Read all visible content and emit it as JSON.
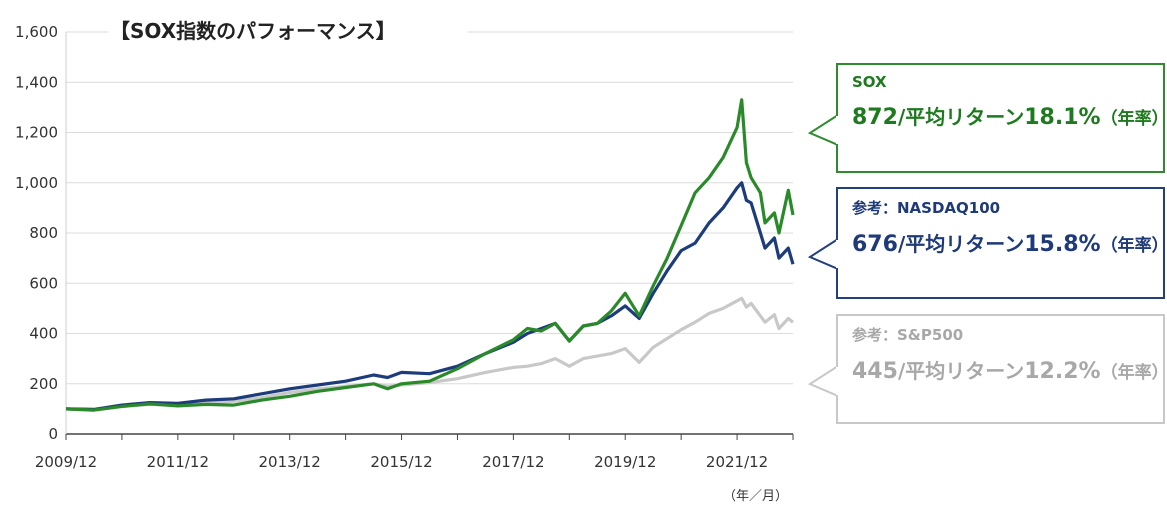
{
  "chart_data": {
    "type": "line",
    "title": "【SOX指数のパフォーマンス】",
    "x_unit_label": "（年／月）",
    "x_tick_labels": [
      "2009/12",
      "2011/12",
      "2013/12",
      "2015/12",
      "2017/12",
      "2019/12",
      "2021/12"
    ],
    "x_range": [
      "2009-12",
      "2022-12"
    ],
    "ylim": [
      0,
      1600
    ],
    "y_ticks": [
      0,
      200,
      400,
      600,
      800,
      1000,
      1200,
      1400,
      1600
    ],
    "y_tick_labels": [
      "0",
      "200",
      "400",
      "600",
      "800",
      "1,000",
      "1,200",
      "1,400",
      "1,600"
    ],
    "grid": "horizontal",
    "series": [
      {
        "name": "SOX",
        "color": "#2a8a2a",
        "points": [
          [
            "2009-12",
            100
          ],
          [
            "2010-06",
            95
          ],
          [
            "2010-12",
            110
          ],
          [
            "2011-06",
            120
          ],
          [
            "2011-12",
            112
          ],
          [
            "2012-06",
            118
          ],
          [
            "2012-12",
            115
          ],
          [
            "2013-06",
            135
          ],
          [
            "2013-12",
            150
          ],
          [
            "2014-06",
            170
          ],
          [
            "2014-12",
            185
          ],
          [
            "2015-06",
            200
          ],
          [
            "2015-09",
            180
          ],
          [
            "2015-12",
            200
          ],
          [
            "2016-06",
            210
          ],
          [
            "2016-12",
            260
          ],
          [
            "2017-06",
            320
          ],
          [
            "2017-12",
            375
          ],
          [
            "2018-03",
            420
          ],
          [
            "2018-06",
            410
          ],
          [
            "2018-09",
            440
          ],
          [
            "2018-12",
            370
          ],
          [
            "2019-03",
            430
          ],
          [
            "2019-06",
            440
          ],
          [
            "2019-09",
            490
          ],
          [
            "2019-12",
            560
          ],
          [
            "2020-03",
            470
          ],
          [
            "2020-06",
            590
          ],
          [
            "2020-09",
            700
          ],
          [
            "2020-12",
            830
          ],
          [
            "2021-03",
            960
          ],
          [
            "2021-06",
            1020
          ],
          [
            "2021-09",
            1100
          ],
          [
            "2021-12",
            1220
          ],
          [
            "2022-01",
            1330
          ],
          [
            "2022-02",
            1080
          ],
          [
            "2022-03",
            1020
          ],
          [
            "2022-05",
            960
          ],
          [
            "2022-06",
            840
          ],
          [
            "2022-08",
            880
          ],
          [
            "2022-09",
            800
          ],
          [
            "2022-11",
            970
          ],
          [
            "2022-12",
            872
          ]
        ]
      },
      {
        "name": "参考：NASDAQ100",
        "color": "#1d3c7c",
        "points": [
          [
            "2009-12",
            100
          ],
          [
            "2010-06",
            98
          ],
          [
            "2010-12",
            115
          ],
          [
            "2011-06",
            125
          ],
          [
            "2011-12",
            122
          ],
          [
            "2012-06",
            135
          ],
          [
            "2012-12",
            140
          ],
          [
            "2013-06",
            160
          ],
          [
            "2013-12",
            180
          ],
          [
            "2014-06",
            195
          ],
          [
            "2014-12",
            210
          ],
          [
            "2015-06",
            235
          ],
          [
            "2015-09",
            225
          ],
          [
            "2015-12",
            245
          ],
          [
            "2016-06",
            240
          ],
          [
            "2016-12",
            270
          ],
          [
            "2017-06",
            320
          ],
          [
            "2017-12",
            365
          ],
          [
            "2018-03",
            400
          ],
          [
            "2018-06",
            420
          ],
          [
            "2018-09",
            440
          ],
          [
            "2018-12",
            370
          ],
          [
            "2019-03",
            430
          ],
          [
            "2019-06",
            440
          ],
          [
            "2019-09",
            470
          ],
          [
            "2019-12",
            510
          ],
          [
            "2020-03",
            460
          ],
          [
            "2020-06",
            560
          ],
          [
            "2020-09",
            650
          ],
          [
            "2020-12",
            730
          ],
          [
            "2021-03",
            760
          ],
          [
            "2021-06",
            840
          ],
          [
            "2021-09",
            900
          ],
          [
            "2021-12",
            980
          ],
          [
            "2022-01",
            1000
          ],
          [
            "2022-02",
            930
          ],
          [
            "2022-03",
            920
          ],
          [
            "2022-05",
            800
          ],
          [
            "2022-06",
            740
          ],
          [
            "2022-08",
            780
          ],
          [
            "2022-09",
            700
          ],
          [
            "2022-11",
            740
          ],
          [
            "2022-12",
            676
          ]
        ]
      },
      {
        "name": "参考：S&P500",
        "color": "#c8c8c8",
        "points": [
          [
            "2009-12",
            100
          ],
          [
            "2010-06",
            95
          ],
          [
            "2010-12",
            110
          ],
          [
            "2011-06",
            118
          ],
          [
            "2011-12",
            115
          ],
          [
            "2012-06",
            125
          ],
          [
            "2012-12",
            130
          ],
          [
            "2013-06",
            145
          ],
          [
            "2013-12",
            165
          ],
          [
            "2014-06",
            180
          ],
          [
            "2014-12",
            190
          ],
          [
            "2015-06",
            200
          ],
          [
            "2015-09",
            190
          ],
          [
            "2015-12",
            195
          ],
          [
            "2016-06",
            205
          ],
          [
            "2016-12",
            220
          ],
          [
            "2017-06",
            245
          ],
          [
            "2017-12",
            265
          ],
          [
            "2018-03",
            270
          ],
          [
            "2018-06",
            280
          ],
          [
            "2018-09",
            300
          ],
          [
            "2018-12",
            270
          ],
          [
            "2019-03",
            300
          ],
          [
            "2019-06",
            310
          ],
          [
            "2019-09",
            320
          ],
          [
            "2019-12",
            340
          ],
          [
            "2020-03",
            285
          ],
          [
            "2020-06",
            345
          ],
          [
            "2020-09",
            380
          ],
          [
            "2020-12",
            415
          ],
          [
            "2021-03",
            445
          ],
          [
            "2021-06",
            480
          ],
          [
            "2021-09",
            500
          ],
          [
            "2021-12",
            530
          ],
          [
            "2022-01",
            540
          ],
          [
            "2022-02",
            505
          ],
          [
            "2022-03",
            520
          ],
          [
            "2022-05",
            470
          ],
          [
            "2022-06",
            445
          ],
          [
            "2022-08",
            475
          ],
          [
            "2022-09",
            420
          ],
          [
            "2022-11",
            460
          ],
          [
            "2022-12",
            445
          ]
        ]
      }
    ]
  },
  "callouts": {
    "sox": {
      "label": "SOX",
      "value": "872",
      "slash_text": "/平均リターン",
      "rate": "18.1%",
      "suffix": "（年率）"
    },
    "ndx": {
      "label": "参考：NASDAQ100",
      "value": "676",
      "slash_text": "/平均リターン",
      "rate": "15.8%",
      "suffix": "（年率）"
    },
    "spx": {
      "label": "参考：S&P500",
      "value": "445",
      "slash_text": "/平均リターン",
      "rate": "12.2%",
      "suffix": "（年率）"
    }
  }
}
